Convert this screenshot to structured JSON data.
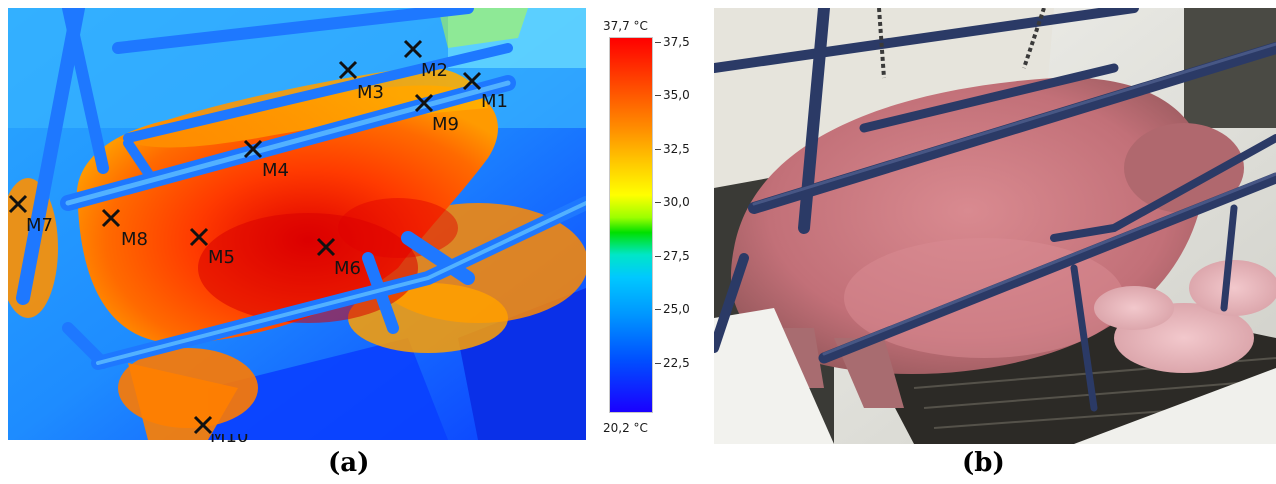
{
  "panel_a": {
    "caption": "(a)",
    "markers": [
      {
        "id": "M1",
        "label": "M1"
      },
      {
        "id": "M2",
        "label": "M2"
      },
      {
        "id": "M3",
        "label": "M3"
      },
      {
        "id": "M4",
        "label": "M4"
      },
      {
        "id": "M5",
        "label": "M5"
      },
      {
        "id": "M6",
        "label": "M6"
      },
      {
        "id": "M7",
        "label": "M7"
      },
      {
        "id": "M8",
        "label": "M8"
      },
      {
        "id": "M9",
        "label": "M9"
      },
      {
        "id": "M10",
        "label": "M10"
      }
    ],
    "scale": {
      "max_label": "37,7 °C",
      "min_label": "20,2 °C",
      "ticks": [
        "37,5",
        "35,0",
        "32,5",
        "30,0",
        "27,5",
        "25,0",
        "22,5"
      ],
      "colors": {
        "hot": "#ff0000",
        "mid": "#ffff00",
        "cool": "#00c8ff",
        "cold": "#1a00ff"
      }
    }
  },
  "panel_b": {
    "caption": "(b)"
  }
}
